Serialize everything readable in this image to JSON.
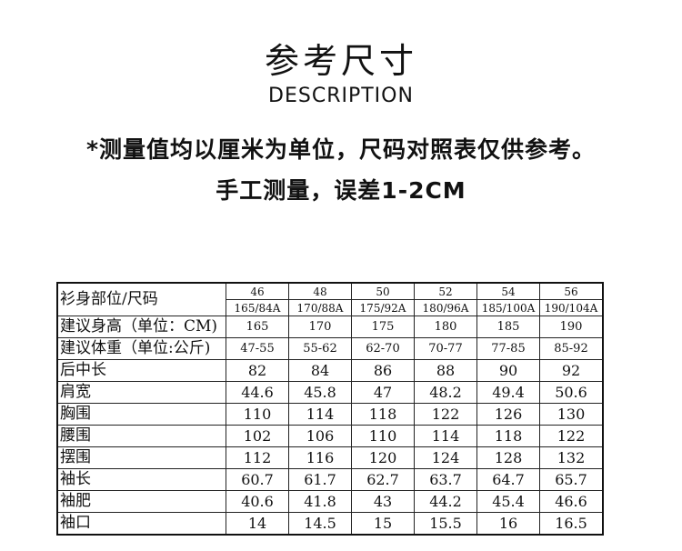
{
  "header": {
    "title": "参考尺寸",
    "subtitle": "DESCRIPTION",
    "note1": "*测量值均以厘米为单位，尺码对照表仅供参考。",
    "note2": "手工测量，误差1-2CM"
  },
  "table": {
    "corner": "衫身部位/尺码",
    "sizes": [
      "46",
      "48",
      "50",
      "52",
      "54",
      "56"
    ],
    "specs": [
      "165/84A",
      "170/88A",
      "175/92A",
      "180/96A",
      "185/100A",
      "190/104A"
    ],
    "rows": [
      {
        "label": "建议身高（单位：CM)",
        "values": [
          "165",
          "170",
          "175",
          "180",
          "185",
          "190"
        ]
      },
      {
        "label": "建议体重（单位:公斤)",
        "values": [
          "47-55",
          "55-62",
          "62-70",
          "70-77",
          "77-85",
          "85-92"
        ]
      },
      {
        "label": "后中长",
        "values": [
          "82",
          "84",
          "86",
          "88",
          "90",
          "92"
        ]
      },
      {
        "label": "肩宽",
        "values": [
          "44.6",
          "45.8",
          "47",
          "48.2",
          "49.4",
          "50.6"
        ]
      },
      {
        "label": "胸围",
        "values": [
          "110",
          "114",
          "118",
          "122",
          "126",
          "130"
        ]
      },
      {
        "label": "腰围",
        "values": [
          "102",
          "106",
          "110",
          "114",
          "118",
          "122"
        ]
      },
      {
        "label": "摆围",
        "values": [
          "112",
          "116",
          "120",
          "124",
          "128",
          "132"
        ]
      },
      {
        "label": "袖长",
        "values": [
          "60.7",
          "61.7",
          "62.7",
          "63.7",
          "64.7",
          "65.7"
        ]
      },
      {
        "label": "袖肥",
        "values": [
          "40.6",
          "41.8",
          "43",
          "44.2",
          "45.4",
          "46.6"
        ]
      },
      {
        "label": "袖口",
        "values": [
          "14",
          "14.5",
          "15",
          "15.5",
          "16",
          "16.5"
        ]
      }
    ]
  }
}
